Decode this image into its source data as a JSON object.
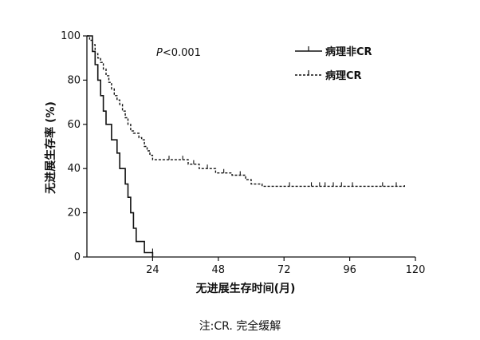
{
  "chart_data": {
    "type": "line",
    "title": "",
    "xlabel": "无进展生存时间(月)",
    "ylabel": "无进展生存率 (%)",
    "xlim": [
      0,
      120
    ],
    "ylim": [
      0,
      100
    ],
    "xticks": [
      24,
      48,
      72,
      96,
      120
    ],
    "yticks": [
      0,
      20,
      40,
      60,
      80,
      100
    ],
    "grid": false,
    "legend_position": "top-right",
    "annotation": {
      "p_italic": "P",
      "p_rest": "<0.001"
    },
    "series": [
      {
        "name": "病理非CR",
        "style": "solid",
        "points": [
          [
            0,
            100
          ],
          [
            2,
            100
          ],
          [
            2,
            93
          ],
          [
            3,
            93
          ],
          [
            3,
            87
          ],
          [
            4,
            87
          ],
          [
            4,
            80
          ],
          [
            5,
            80
          ],
          [
            5,
            73
          ],
          [
            6,
            73
          ],
          [
            6,
            66
          ],
          [
            7,
            66
          ],
          [
            7,
            60
          ],
          [
            9,
            60
          ],
          [
            9,
            53
          ],
          [
            11,
            53
          ],
          [
            11,
            47
          ],
          [
            12,
            47
          ],
          [
            12,
            40
          ],
          [
            14,
            40
          ],
          [
            14,
            33
          ],
          [
            15,
            33
          ],
          [
            15,
            27
          ],
          [
            16,
            27
          ],
          [
            16,
            20
          ],
          [
            17,
            20
          ],
          [
            17,
            13
          ],
          [
            18,
            13
          ],
          [
            18,
            7
          ],
          [
            21,
            7
          ],
          [
            21,
            2
          ],
          [
            24,
            2
          ],
          [
            24,
            0
          ]
        ],
        "censored": [
          [
            24,
            2
          ]
        ]
      },
      {
        "name": "病理CR",
        "style": "dashed",
        "points": [
          [
            0,
            100
          ],
          [
            1,
            100
          ],
          [
            1,
            98
          ],
          [
            2,
            98
          ],
          [
            2,
            96
          ],
          [
            3,
            96
          ],
          [
            3,
            92
          ],
          [
            4,
            92
          ],
          [
            4,
            90
          ],
          [
            5,
            90
          ],
          [
            5,
            88
          ],
          [
            6,
            88
          ],
          [
            6,
            85
          ],
          [
            7,
            85
          ],
          [
            7,
            82
          ],
          [
            8,
            82
          ],
          [
            8,
            79
          ],
          [
            9,
            79
          ],
          [
            9,
            76
          ],
          [
            10,
            76
          ],
          [
            10,
            73
          ],
          [
            11,
            73
          ],
          [
            11,
            71
          ],
          [
            12,
            71
          ],
          [
            12,
            69
          ],
          [
            13,
            69
          ],
          [
            13,
            66
          ],
          [
            14,
            66
          ],
          [
            14,
            63
          ],
          [
            15,
            63
          ],
          [
            15,
            60
          ],
          [
            16,
            60
          ],
          [
            16,
            57
          ],
          [
            17,
            57
          ],
          [
            17,
            56
          ],
          [
            19,
            56
          ],
          [
            19,
            54
          ],
          [
            20,
            54
          ],
          [
            20,
            53
          ],
          [
            21,
            53
          ],
          [
            21,
            50
          ],
          [
            22,
            50
          ],
          [
            22,
            48
          ],
          [
            23,
            48
          ],
          [
            23,
            46
          ],
          [
            24,
            46
          ],
          [
            24,
            44
          ],
          [
            37,
            44
          ],
          [
            37,
            42
          ],
          [
            41,
            42
          ],
          [
            41,
            40
          ],
          [
            47,
            40
          ],
          [
            47,
            38
          ],
          [
            53,
            38
          ],
          [
            53,
            37
          ],
          [
            58,
            37
          ],
          [
            58,
            35
          ],
          [
            60,
            35
          ],
          [
            60,
            33
          ],
          [
            64,
            33
          ],
          [
            64,
            32
          ],
          [
            116,
            32
          ],
          [
            116,
            33
          ]
        ],
        "censored": [
          [
            30,
            44
          ],
          [
            35,
            44
          ],
          [
            39,
            42
          ],
          [
            44,
            40
          ],
          [
            50,
            38
          ],
          [
            56,
            37
          ],
          [
            74,
            32
          ],
          [
            82,
            32
          ],
          [
            85,
            32
          ],
          [
            87,
            32
          ],
          [
            90,
            32
          ],
          [
            93,
            32
          ],
          [
            97,
            32
          ],
          [
            108,
            32
          ],
          [
            113,
            32
          ]
        ]
      }
    ]
  },
  "footnote": "注:CR. 完全缓解"
}
